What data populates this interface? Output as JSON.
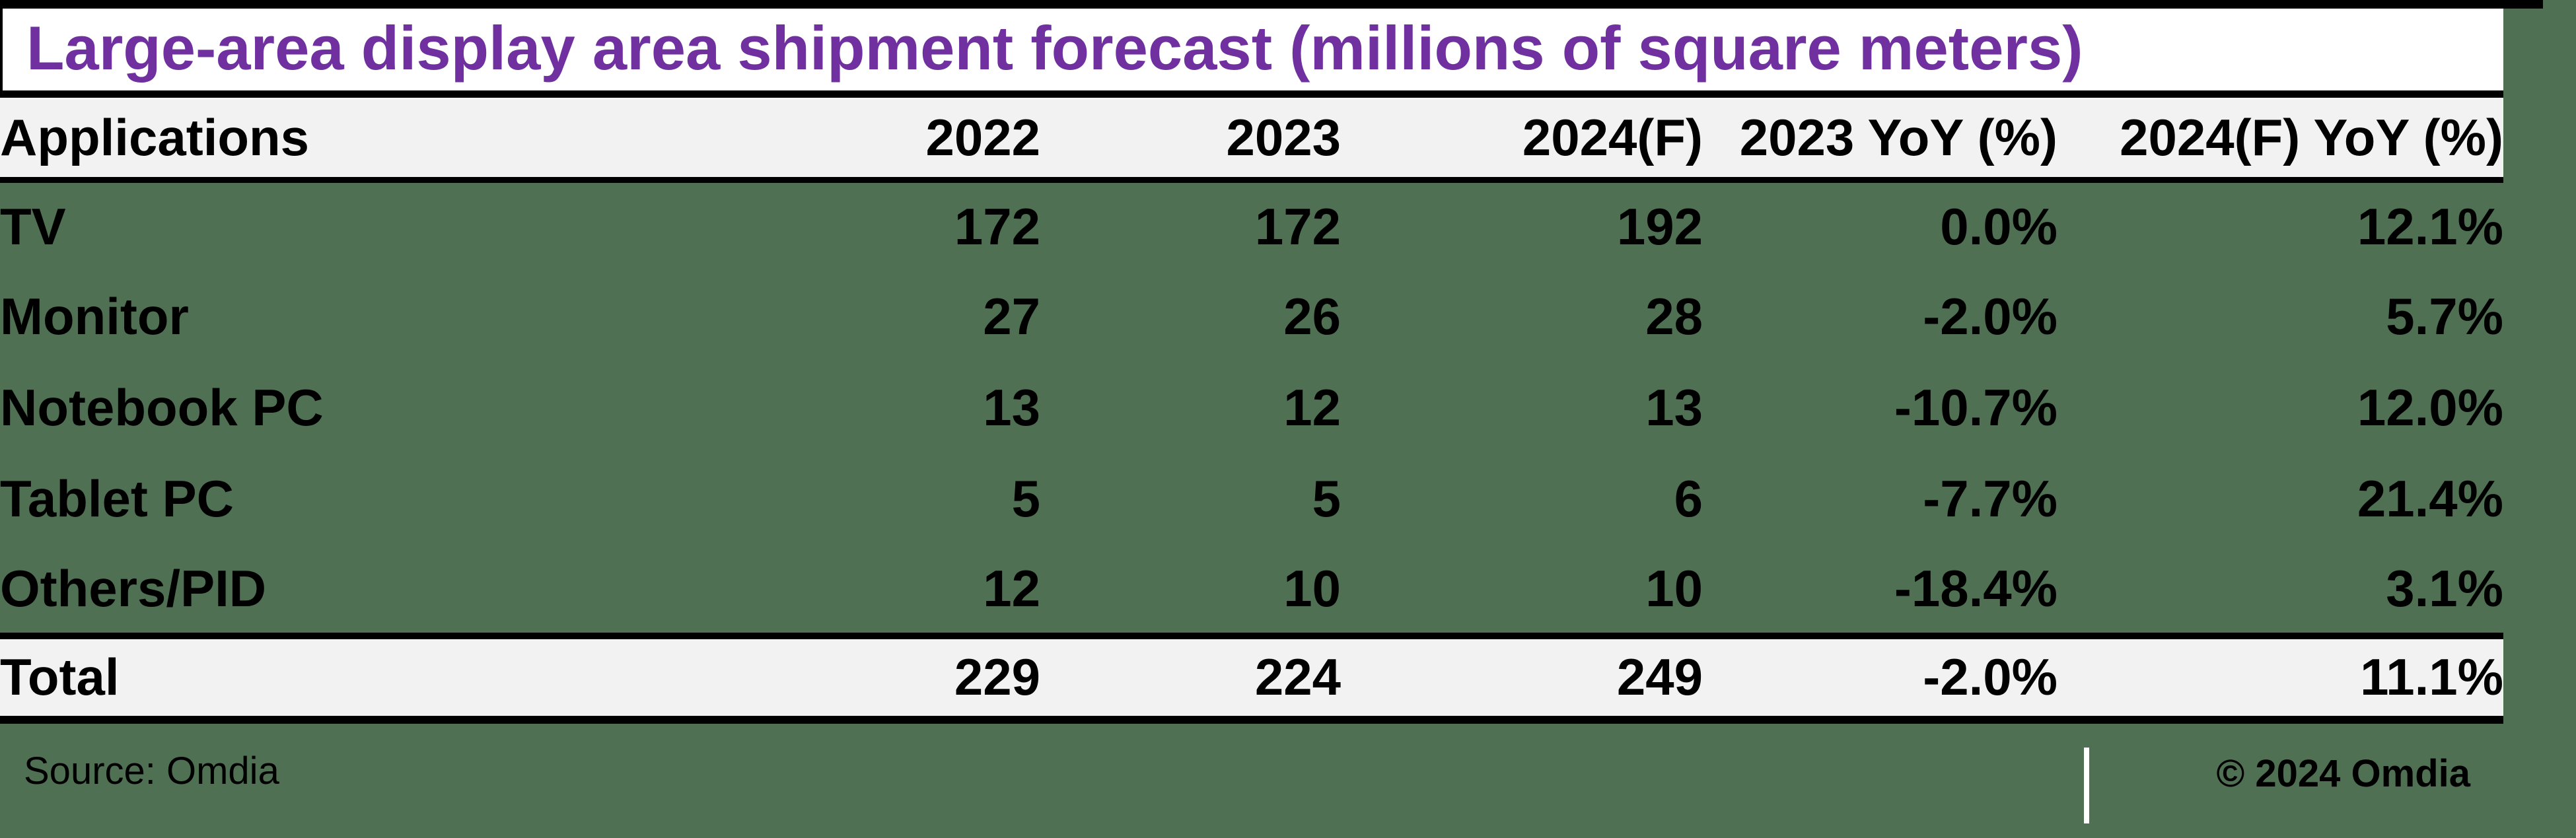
{
  "colors": {
    "page_background": "#4f7053",
    "title_text": "#7030a0",
    "band_background": "#f2f2f2",
    "border": "#000000",
    "divider": "#ffffff"
  },
  "chart_data": {
    "type": "table",
    "title": "Large-area display area shipment forecast (millions of square meters)",
    "columns": [
      "Applications",
      "2022",
      "2023",
      "2024(F)",
      "2023 YoY (%)",
      "2024(F) YoY (%)"
    ],
    "rows": [
      [
        "TV",
        "172",
        "172",
        "192",
        "0.0%",
        "12.1%"
      ],
      [
        "Monitor",
        "27",
        "26",
        "28",
        "-2.0%",
        "5.7%"
      ],
      [
        "Notebook PC",
        "13",
        "12",
        "13",
        "-10.7%",
        "12.0%"
      ],
      [
        "Tablet PC",
        "5",
        "5",
        "6",
        "-7.7%",
        "21.4%"
      ],
      [
        "Others/PID",
        "12",
        "10",
        "10",
        "-18.4%",
        "3.1%"
      ]
    ],
    "total_row": [
      "Total",
      "229",
      "224",
      "249",
      "-2.0%",
      "11.1%"
    ],
    "source": "Source: Omdia",
    "copyright": "© 2024 Omdia"
  }
}
